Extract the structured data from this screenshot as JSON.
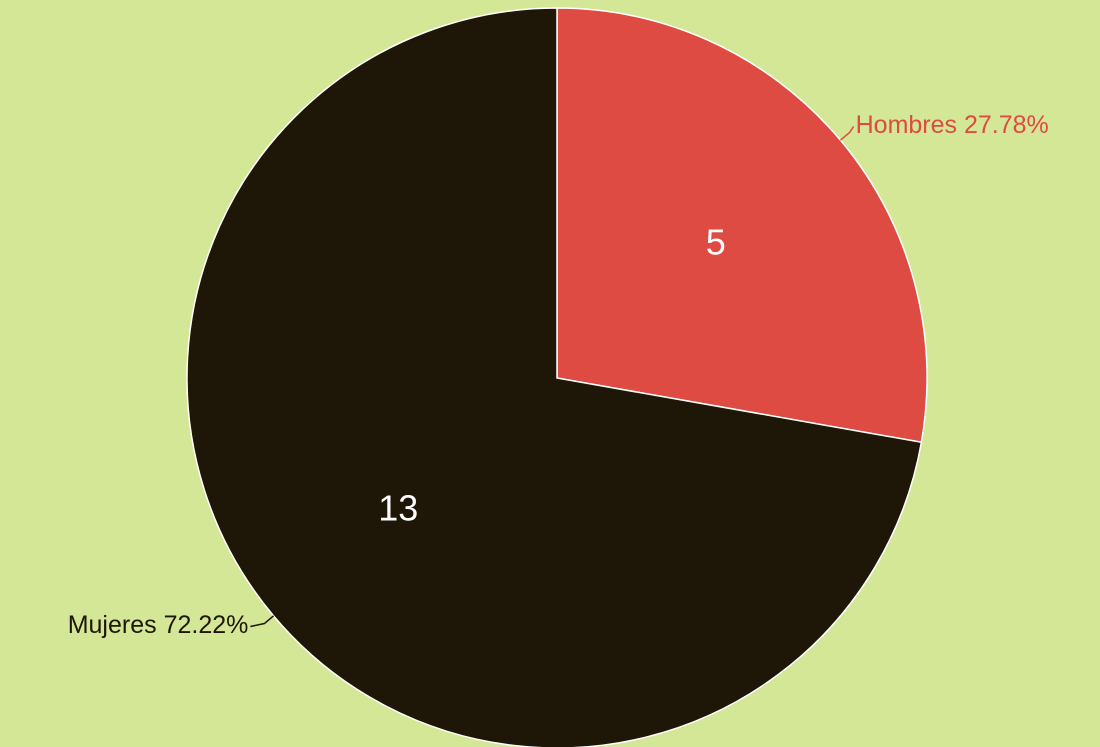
{
  "chart_data": {
    "type": "pie",
    "title": "",
    "slices": [
      {
        "label": "Hombres",
        "value": 5,
        "value_label": "5",
        "percent_label": "27.78%",
        "color": "#dd4b43"
      },
      {
        "label": "Mujeres",
        "value": 13,
        "value_label": "13",
        "percent_label": "72.22%",
        "color": "#1e1606"
      }
    ],
    "background": "#d4e796",
    "start_angle": "12 o'clock",
    "direction": "clockwise",
    "legend": "none"
  }
}
